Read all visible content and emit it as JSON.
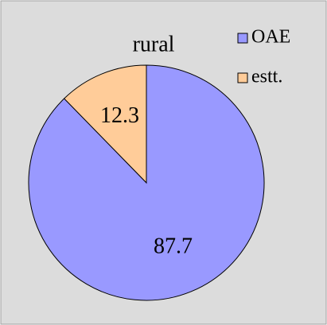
{
  "chart_data": {
    "type": "pie",
    "title": "rural",
    "categories": [
      "OAE",
      "estt."
    ],
    "values": [
      87.7,
      12.3
    ],
    "colors": [
      "#9999ff",
      "#ffcc99"
    ],
    "legend": "top-right"
  }
}
